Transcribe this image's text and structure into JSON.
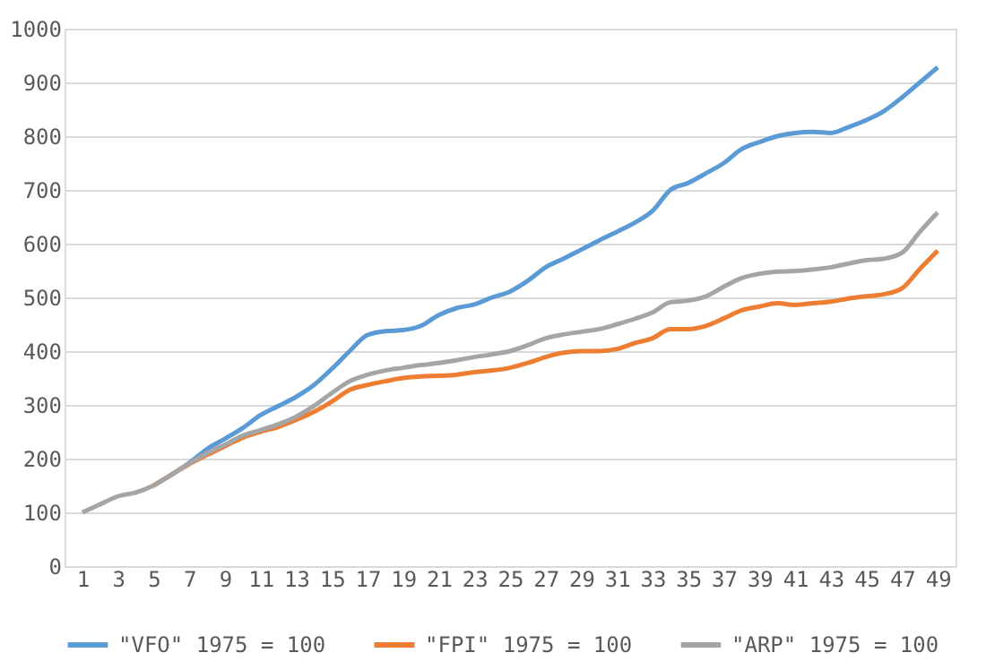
{
  "chart_data": {
    "type": "line",
    "x": [
      1,
      2,
      3,
      4,
      5,
      6,
      7,
      8,
      9,
      10,
      11,
      12,
      13,
      14,
      15,
      16,
      17,
      18,
      19,
      20,
      21,
      22,
      23,
      24,
      25,
      26,
      27,
      28,
      29,
      30,
      31,
      32,
      33,
      34,
      35,
      36,
      37,
      38,
      39,
      40,
      41,
      42,
      43,
      44,
      45,
      46,
      47,
      48,
      49
    ],
    "xlim": [
      0,
      50
    ],
    "xticks": [
      1,
      3,
      5,
      7,
      9,
      11,
      13,
      15,
      17,
      19,
      21,
      23,
      25,
      27,
      29,
      31,
      33,
      35,
      37,
      39,
      41,
      43,
      45,
      47,
      49
    ],
    "ylim": [
      0,
      1000
    ],
    "yticks": [
      0,
      100,
      200,
      300,
      400,
      500,
      600,
      700,
      800,
      900,
      1000
    ],
    "grid": "y",
    "legend": "bottom",
    "marker": "none",
    "line_style": "solid",
    "series": [
      {
        "name": "\"VFO\" 1975 = 100",
        "color": "#5b9bd5",
        "values": [
          null,
          null,
          null,
          null,
          null,
          170,
          192,
          218,
          237,
          257,
          281,
          298,
          315,
          337,
          367,
          400,
          430,
          437,
          439,
          447,
          467,
          480,
          487,
          500,
          511,
          531,
          556,
          572,
          589,
          606,
          622,
          639,
          661,
          700,
          713,
          731,
          750,
          776,
          789,
          800,
          806,
          808,
          806,
          817,
          830,
          847,
          872,
          900,
          928
        ]
      },
      {
        "name": "\"FPI\" 1975 = 100",
        "color": "#ed7d31",
        "values": [
          null,
          null,
          null,
          null,
          150,
          170,
          190,
          207,
          223,
          239,
          250,
          259,
          272,
          287,
          306,
          328,
          337,
          344,
          350,
          353,
          354,
          356,
          361,
          364,
          369,
          378,
          389,
          397,
          400,
          400,
          404,
          415,
          424,
          441,
          441,
          447,
          461,
          476,
          483,
          489,
          486,
          489,
          492,
          498,
          502,
          506,
          517,
          553,
          587
        ]
      },
      {
        "name": "\"ARP\" 1975 = 100",
        "color": "#a5a5a5",
        "values": [
          100,
          115,
          130,
          137,
          150,
          170,
          191,
          210,
          226,
          243,
          253,
          264,
          278,
          298,
          322,
          344,
          356,
          364,
          369,
          374,
          378,
          383,
          389,
          394,
          400,
          411,
          424,
          431,
          436,
          441,
          450,
          460,
          472,
          491,
          494,
          502,
          520,
          536,
          544,
          548,
          549,
          552,
          556,
          563,
          569,
          572,
          583,
          622,
          658
        ]
      }
    ]
  }
}
